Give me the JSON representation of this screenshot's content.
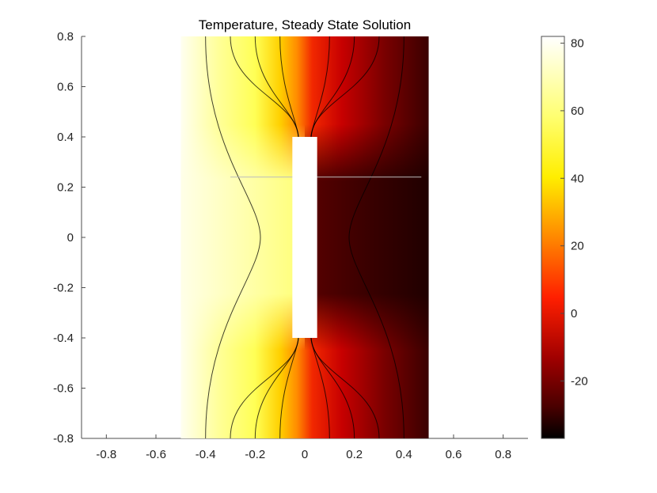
{
  "chart_data": {
    "type": "heatmap",
    "title": "Temperature, Steady State Solution",
    "xlabel": "",
    "ylabel": "",
    "xlim": [
      -0.9,
      0.9
    ],
    "ylim": [
      -0.8,
      0.8
    ],
    "x_ticks": [
      "-0.8",
      "-0.6",
      "-0.4",
      "-0.2",
      "0",
      "0.2",
      "0.4",
      "0.6",
      "0.8"
    ],
    "y_ticks": [
      "0.8",
      "0.6",
      "0.4",
      "0.2",
      "0",
      "-0.2",
      "-0.4",
      "-0.6",
      "-0.8"
    ],
    "domain": {
      "x": [
        -0.5,
        0.5
      ],
      "y": [
        -0.8,
        0.8
      ]
    },
    "slot": {
      "x": [
        -0.05,
        0.05
      ],
      "y": [
        -0.4,
        0.4
      ]
    },
    "colormap": "hot",
    "colorbar": {
      "ticks": [
        "80",
        "60",
        "40",
        "20",
        "0",
        "-20"
      ],
      "range": [
        -37,
        82
      ]
    },
    "boundary_values": {
      "left": 82,
      "right": -37
    },
    "contour_x_positions": [
      -0.4,
      -0.3,
      -0.2,
      -0.1,
      0.1,
      0.2,
      0.3,
      0.4
    ]
  }
}
